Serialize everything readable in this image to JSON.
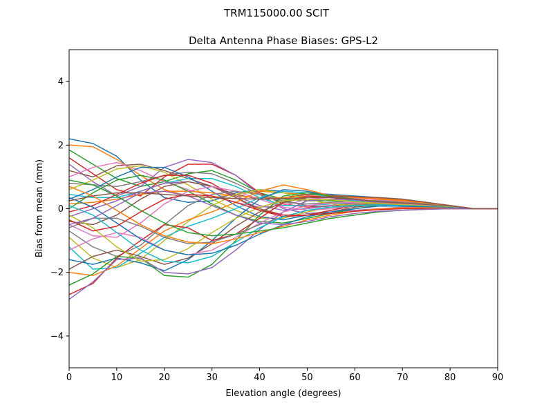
{
  "suptitle": "TRM115000.00    SCIT",
  "chart_data": {
    "type": "line",
    "title": "Delta Antenna Phase Biases: GPS-L2",
    "xlabel": "Elevation angle (degrees)",
    "ylabel": "Bias from mean (mm)",
    "xlim": [
      0,
      90
    ],
    "ylim": [
      -5,
      5
    ],
    "xticks": [
      "0",
      "10",
      "20",
      "30",
      "40",
      "50",
      "60",
      "70",
      "80",
      "90"
    ],
    "yticks": [
      "−4",
      "−2",
      "0",
      "2",
      "4"
    ],
    "grid": false,
    "legend": "none",
    "x": [
      0,
      5,
      10,
      15,
      20,
      25,
      30,
      35,
      40,
      45,
      50,
      55,
      60,
      65,
      70,
      75,
      80,
      85,
      90
    ],
    "series_colors": [
      "#1f77b4",
      "#ff7f0e",
      "#2ca02c",
      "#d62728",
      "#9467bd",
      "#8c564b",
      "#e377c2",
      "#7f7f7f",
      "#bcbd22",
      "#17becf"
    ],
    "series": [
      {
        "values": [
          2.2,
          2.05,
          1.65,
          0.9,
          0.35,
          0.2,
          0.25,
          0.5,
          0.6,
          0.55,
          0.5,
          0.45,
          0.4,
          0.35,
          0.3,
          0.2,
          0.1,
          0.0,
          0.0
        ]
      },
      {
        "values": [
          2.0,
          1.95,
          1.55,
          1.05,
          0.6,
          0.4,
          0.35,
          0.45,
          0.55,
          0.5,
          0.45,
          0.42,
          0.38,
          0.33,
          0.28,
          0.2,
          0.1,
          0.0,
          0.0
        ]
      },
      {
        "values": [
          1.85,
          1.4,
          0.95,
          0.7,
          0.85,
          1.1,
          1.2,
          0.9,
          0.5,
          0.3,
          0.25,
          0.25,
          0.25,
          0.25,
          0.2,
          0.15,
          0.08,
          0.0,
          0.0
        ]
      },
      {
        "values": [
          1.6,
          1.1,
          0.6,
          0.4,
          1.0,
          1.4,
          1.4,
          1.05,
          0.5,
          0.15,
          0.05,
          0.1,
          0.15,
          0.15,
          0.15,
          0.1,
          0.05,
          0.0,
          0.0
        ]
      },
      {
        "values": [
          1.4,
          0.85,
          0.4,
          0.7,
          1.3,
          1.55,
          1.45,
          1.05,
          0.45,
          0.0,
          -0.15,
          -0.1,
          -0.05,
          0.0,
          0.05,
          0.05,
          0.03,
          0.0,
          0.0
        ]
      },
      {
        "values": [
          1.2,
          1.0,
          1.35,
          1.4,
          1.2,
          0.95,
          0.7,
          0.45,
          0.3,
          0.35,
          0.45,
          0.42,
          0.35,
          0.3,
          0.25,
          0.18,
          0.1,
          0.0,
          0.0
        ]
      },
      {
        "values": [
          1.0,
          1.3,
          1.45,
          1.2,
          0.85,
          0.6,
          0.4,
          0.2,
          0.05,
          0.1,
          0.3,
          0.35,
          0.33,
          0.28,
          0.22,
          0.15,
          0.08,
          0.0,
          0.0
        ]
      },
      {
        "values": [
          0.8,
          0.75,
          0.7,
          0.85,
          1.05,
          1.15,
          1.1,
          0.8,
          0.45,
          0.2,
          0.15,
          0.2,
          0.25,
          0.25,
          0.2,
          0.15,
          0.08,
          0.0,
          0.0
        ]
      },
      {
        "values": [
          0.6,
          0.9,
          1.25,
          1.35,
          1.15,
          0.75,
          0.3,
          -0.05,
          -0.3,
          -0.3,
          -0.1,
          0.05,
          0.15,
          0.18,
          0.15,
          0.1,
          0.05,
          0.0,
          0.0
        ]
      },
      {
        "values": [
          0.45,
          0.35,
          0.35,
          0.55,
          0.8,
          0.95,
          0.95,
          0.7,
          0.35,
          0.1,
          0.1,
          0.15,
          0.2,
          0.2,
          0.18,
          0.12,
          0.06,
          0.0,
          0.0
        ]
      },
      {
        "values": [
          0.3,
          0.6,
          1.0,
          1.3,
          1.3,
          1.0,
          0.55,
          0.1,
          -0.25,
          -0.35,
          -0.2,
          -0.05,
          0.1,
          0.15,
          0.13,
          0.1,
          0.05,
          0.0,
          0.0
        ]
      },
      {
        "values": [
          0.15,
          0.2,
          0.3,
          0.45,
          0.55,
          0.55,
          0.5,
          0.4,
          0.35,
          0.35,
          0.4,
          0.4,
          0.35,
          0.3,
          0.25,
          0.18,
          0.1,
          0.0,
          0.0
        ]
      },
      {
        "values": [
          0.0,
          0.5,
          0.9,
          1.05,
          0.9,
          0.55,
          0.15,
          -0.2,
          -0.4,
          -0.45,
          -0.3,
          -0.15,
          0.0,
          0.1,
          0.1,
          0.08,
          0.04,
          0.0,
          0.0
        ]
      },
      {
        "values": [
          -0.1,
          0.1,
          0.45,
          0.8,
          1.05,
          1.05,
          0.8,
          0.35,
          -0.05,
          -0.25,
          -0.2,
          -0.05,
          0.1,
          0.15,
          0.13,
          0.1,
          0.05,
          0.0,
          0.0
        ]
      },
      {
        "values": [
          -0.25,
          0.0,
          0.25,
          0.55,
          0.8,
          0.85,
          0.7,
          0.4,
          0.1,
          -0.05,
          0.0,
          0.1,
          0.18,
          0.2,
          0.17,
          0.12,
          0.06,
          0.0,
          0.0
        ]
      },
      {
        "values": [
          -0.4,
          -0.5,
          -0.2,
          0.3,
          0.7,
          0.85,
          0.7,
          0.35,
          0.0,
          -0.2,
          -0.2,
          -0.1,
          0.05,
          0.12,
          0.12,
          0.08,
          0.04,
          0.0,
          0.0
        ]
      },
      {
        "values": [
          -0.5,
          -0.85,
          -0.9,
          -0.45,
          0.15,
          0.55,
          0.7,
          0.55,
          0.3,
          0.05,
          -0.05,
          0.0,
          0.1,
          0.15,
          0.13,
          0.1,
          0.05,
          0.0,
          0.0
        ]
      },
      {
        "values": [
          -0.7,
          -1.2,
          -1.5,
          -1.15,
          -0.5,
          0.1,
          0.45,
          0.55,
          0.45,
          0.25,
          0.1,
          0.05,
          0.08,
          0.12,
          0.12,
          0.08,
          0.04,
          0.0,
          0.0
        ]
      },
      {
        "values": [
          -0.9,
          -1.55,
          -1.85,
          -1.6,
          -1.0,
          -0.4,
          0.1,
          0.45,
          0.6,
          0.5,
          0.3,
          0.15,
          0.1,
          0.12,
          0.1,
          0.08,
          0.04,
          0.0,
          0.0
        ]
      },
      {
        "values": [
          -1.2,
          -1.9,
          -1.85,
          -1.4,
          -0.9,
          -0.55,
          -0.3,
          0.0,
          0.35,
          0.55,
          0.5,
          0.35,
          0.25,
          0.2,
          0.15,
          0.1,
          0.05,
          0.0,
          0.0
        ]
      },
      {
        "values": [
          -1.6,
          -1.75,
          -1.55,
          -1.7,
          -1.95,
          -1.6,
          -1.0,
          -0.3,
          0.3,
          0.6,
          0.55,
          0.4,
          0.3,
          0.22,
          0.18,
          0.12,
          0.06,
          0.0,
          0.0
        ]
      },
      {
        "values": [
          -2.0,
          -2.1,
          -1.8,
          -1.25,
          -0.7,
          -0.35,
          -0.1,
          0.2,
          0.55,
          0.75,
          0.6,
          0.4,
          0.3,
          0.22,
          0.18,
          0.12,
          0.06,
          0.0,
          0.0
        ]
      },
      {
        "values": [
          -2.4,
          -2.05,
          -1.5,
          -1.55,
          -2.1,
          -2.15,
          -1.75,
          -1.0,
          -0.2,
          0.4,
          0.5,
          0.4,
          0.3,
          0.22,
          0.17,
          0.12,
          0.06,
          0.0,
          0.0
        ]
      },
      {
        "values": [
          -2.7,
          -2.35,
          -1.55,
          -1.0,
          -0.5,
          -0.6,
          -1.0,
          -0.8,
          -0.3,
          0.2,
          0.4,
          0.35,
          0.28,
          0.2,
          0.15,
          0.1,
          0.05,
          0.0,
          0.0
        ]
      },
      {
        "values": [
          -2.85,
          -2.3,
          -1.6,
          -1.55,
          -2.0,
          -2.05,
          -1.85,
          -1.3,
          -0.65,
          -0.1,
          0.25,
          0.3,
          0.28,
          0.2,
          0.15,
          0.1,
          0.05,
          0.0,
          0.0
        ]
      },
      {
        "values": [
          -1.9,
          -1.5,
          -1.3,
          -1.5,
          -1.75,
          -1.55,
          -1.1,
          -0.55,
          -0.1,
          0.2,
          0.35,
          0.35,
          0.3,
          0.22,
          0.17,
          0.12,
          0.06,
          0.0,
          0.0
        ]
      },
      {
        "values": [
          -1.3,
          -0.95,
          -0.75,
          -0.9,
          -1.3,
          -1.45,
          -1.3,
          -0.9,
          -0.45,
          -0.1,
          0.1,
          0.18,
          0.2,
          0.18,
          0.14,
          0.1,
          0.05,
          0.0,
          0.0
        ]
      },
      {
        "values": [
          -0.6,
          -0.3,
          -0.3,
          -0.55,
          -0.9,
          -1.1,
          -1.05,
          -0.8,
          -0.5,
          -0.25,
          -0.05,
          0.05,
          0.12,
          0.14,
          0.12,
          0.08,
          0.04,
          0.0,
          0.0
        ]
      },
      {
        "values": [
          -0.2,
          -0.6,
          -1.2,
          -1.65,
          -1.6,
          -1.25,
          -0.75,
          -0.3,
          0.05,
          0.25,
          0.3,
          0.28,
          0.22,
          0.17,
          0.13,
          0.09,
          0.05,
          0.0,
          0.0
        ]
      },
      {
        "values": [
          0.1,
          -0.2,
          -0.75,
          -1.3,
          -1.65,
          -1.7,
          -1.5,
          -1.05,
          -0.6,
          -0.25,
          -0.05,
          0.05,
          0.1,
          0.12,
          0.1,
          0.07,
          0.04,
          0.0,
          0.0
        ]
      },
      {
        "values": [
          0.35,
          0.05,
          -0.45,
          -0.95,
          -1.3,
          -1.45,
          -1.4,
          -1.15,
          -0.8,
          -0.5,
          -0.25,
          -0.1,
          0.0,
          0.08,
          0.08,
          0.06,
          0.03,
          0.0,
          0.0
        ]
      },
      {
        "values": [
          0.7,
          0.4,
          -0.05,
          -0.5,
          -0.85,
          -1.05,
          -1.1,
          -0.95,
          -0.75,
          -0.55,
          -0.35,
          -0.2,
          -0.08,
          0.0,
          0.03,
          0.03,
          0.02,
          0.0,
          0.0
        ]
      },
      {
        "values": [
          0.9,
          0.75,
          0.4,
          -0.05,
          -0.45,
          -0.75,
          -0.85,
          -0.8,
          -0.7,
          -0.6,
          -0.45,
          -0.3,
          -0.2,
          -0.1,
          -0.05,
          -0.02,
          0.0,
          0.0,
          0.0
        ]
      },
      {
        "values": [
          -0.35,
          -0.7,
          -0.55,
          -0.1,
          0.3,
          0.45,
          0.4,
          0.2,
          -0.05,
          -0.2,
          -0.2,
          -0.15,
          -0.08,
          -0.03,
          0.0,
          0.0,
          0.0,
          0.0,
          0.0
        ]
      },
      {
        "values": [
          -0.5,
          -0.3,
          0.1,
          0.5,
          0.55,
          0.4,
          0.1,
          -0.2,
          -0.45,
          -0.5,
          -0.4,
          -0.25,
          -0.15,
          -0.08,
          -0.05,
          -0.02,
          0.0,
          0.0,
          0.0
        ]
      },
      {
        "values": [
          0.25,
          0.4,
          0.5,
          0.5,
          0.45,
          0.4,
          0.35,
          0.32,
          0.3,
          0.32,
          0.35,
          0.38,
          0.38,
          0.35,
          0.3,
          0.2,
          0.1,
          0.0,
          0.0
        ]
      }
    ]
  }
}
